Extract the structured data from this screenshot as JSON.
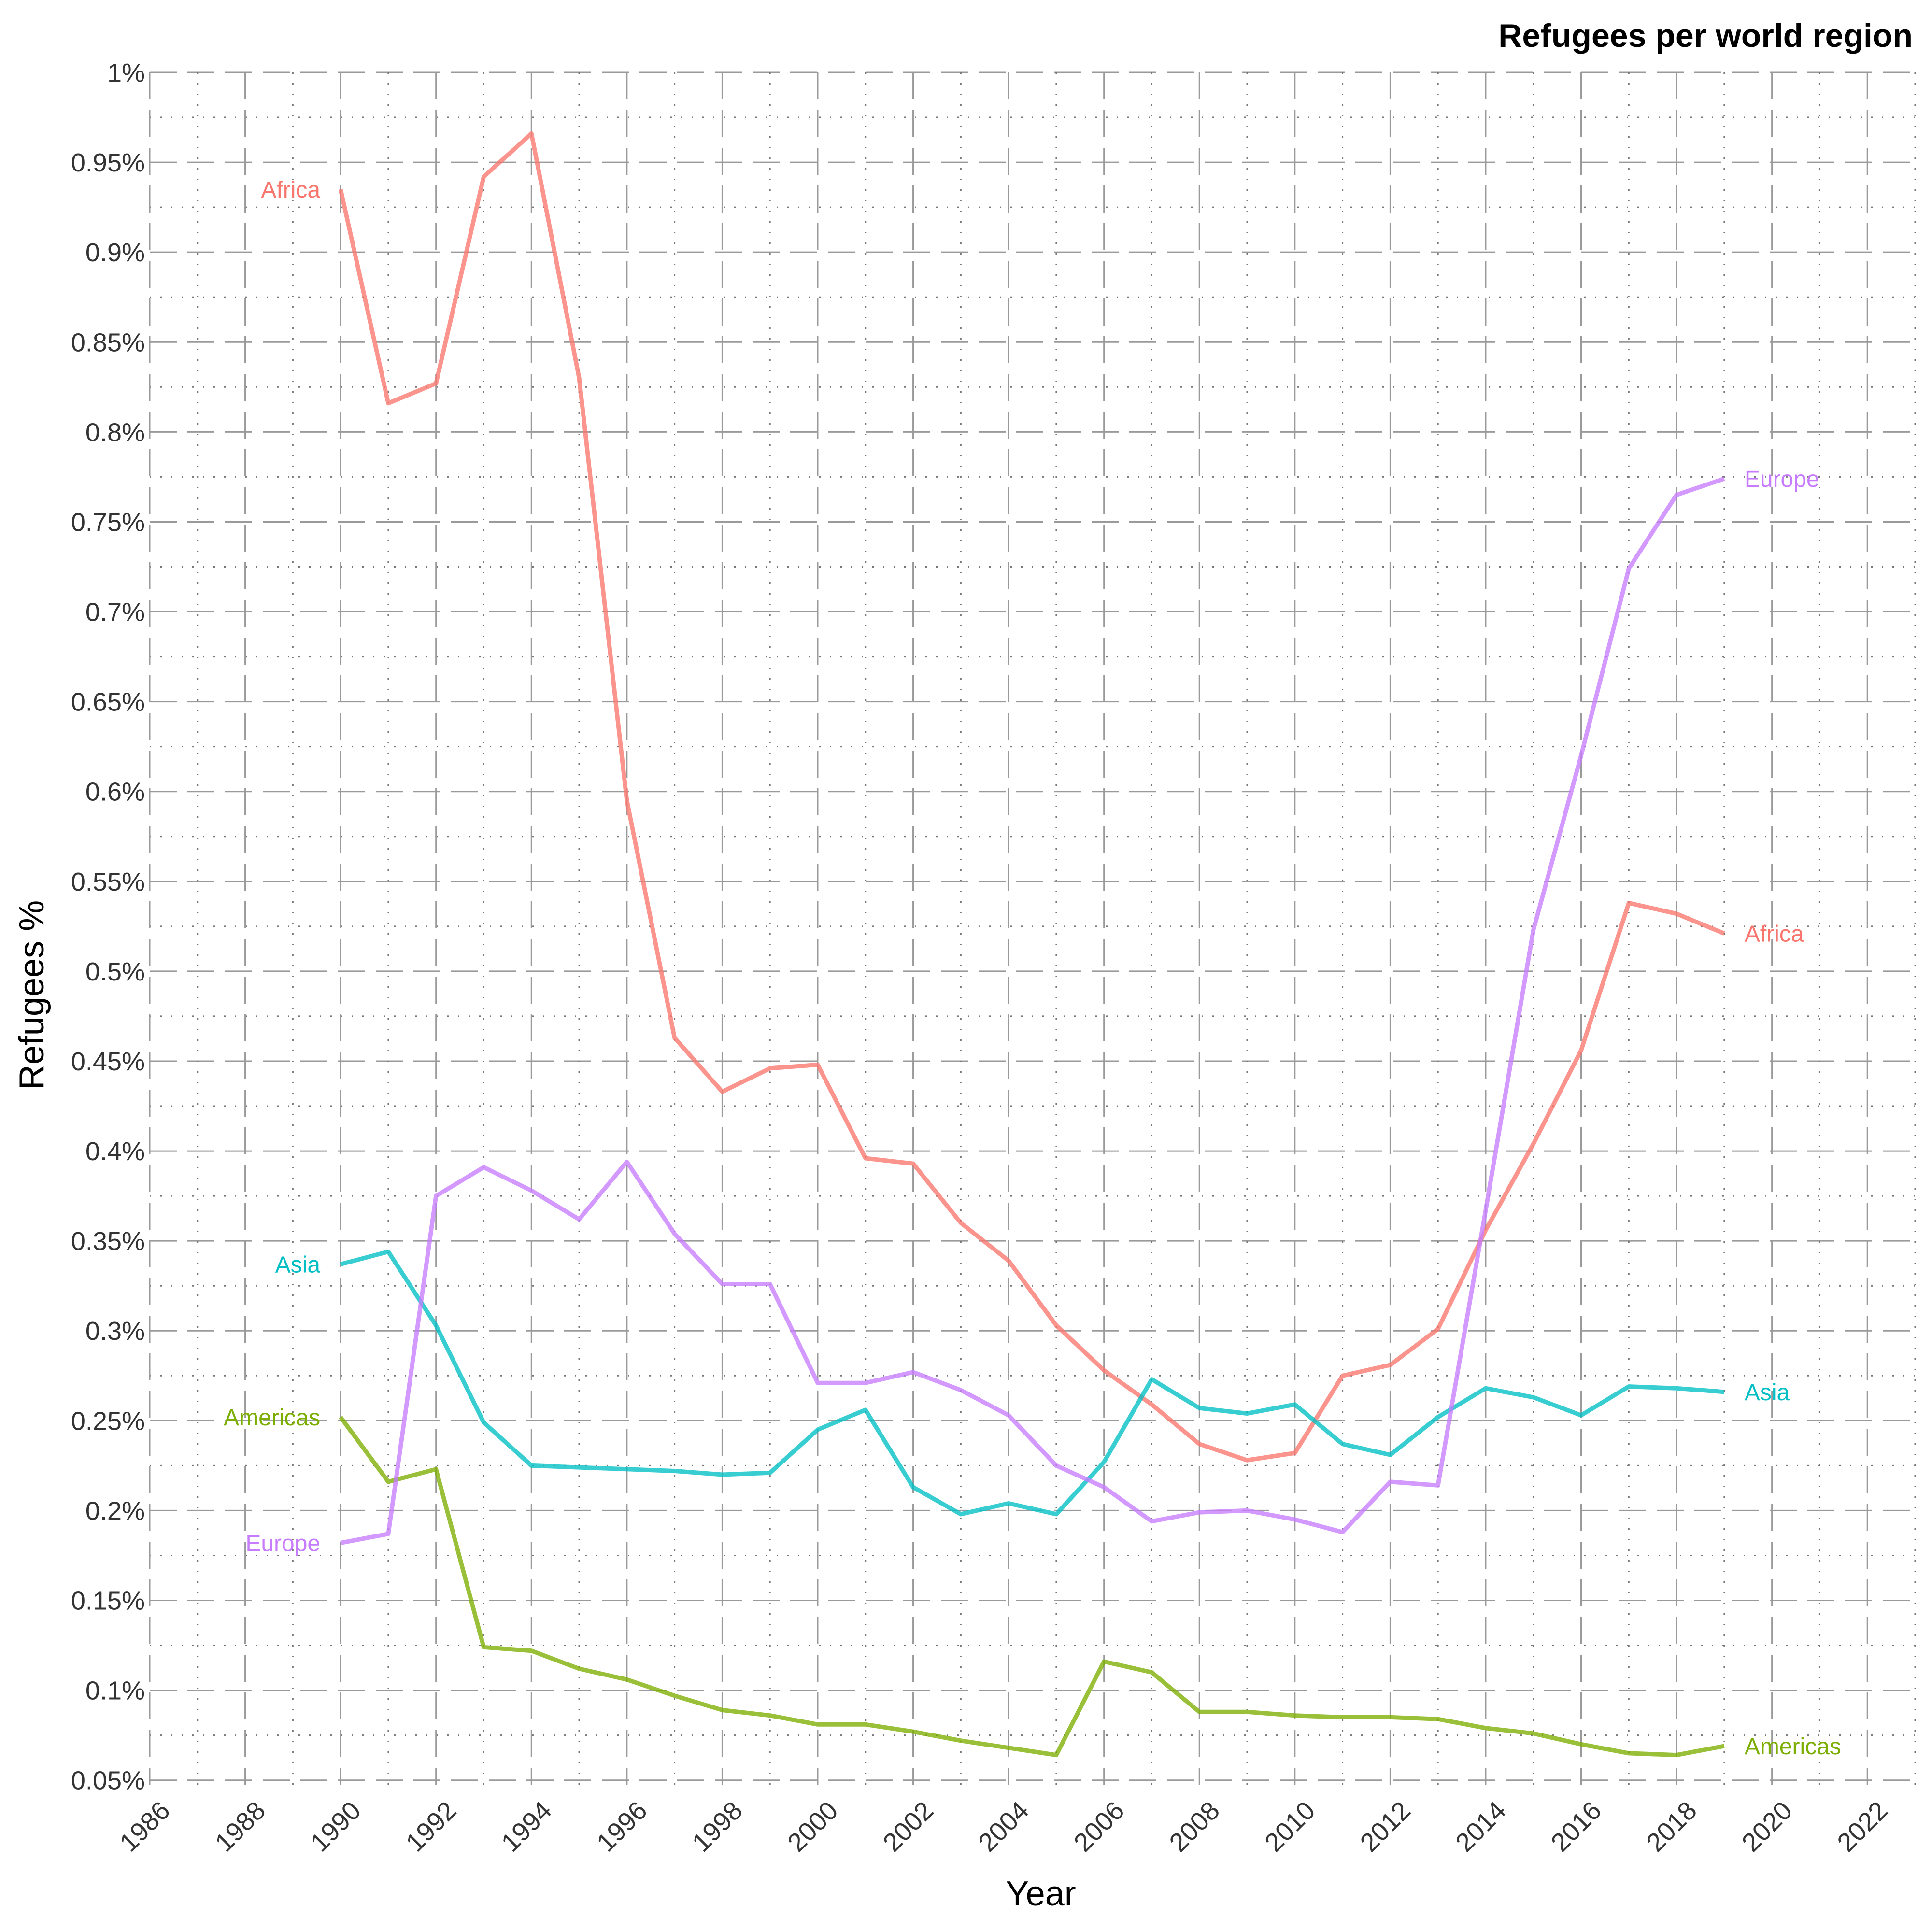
{
  "chart_data": {
    "type": "line",
    "title": "Refugees per world region",
    "xlabel": "Year",
    "ylabel": "Refugees %",
    "xlim": [
      1986,
      2023
    ],
    "ylim": [
      0.0475,
      1.0
    ],
    "grid": true,
    "x_ticks": [
      "1986",
      "1988",
      "1990",
      "1992",
      "1994",
      "1996",
      "1998",
      "2000",
      "2002",
      "2004",
      "2006",
      "2008",
      "2010",
      "2012",
      "2014",
      "2016",
      "2018",
      "2020",
      "2022"
    ],
    "y_ticks": [
      "0.05%",
      "0.1%",
      "0.15%",
      "0.2%",
      "0.25%",
      "0.3%",
      "0.35%",
      "0.4%",
      "0.45%",
      "0.5%",
      "0.55%",
      "0.6%",
      "0.65%",
      "0.7%",
      "0.75%",
      "0.8%",
      "0.85%",
      "0.9%",
      "0.95%",
      "1%"
    ],
    "x": [
      1990,
      1991,
      1992,
      1993,
      1994,
      1995,
      1996,
      1997,
      1998,
      1999,
      2000,
      2001,
      2002,
      2003,
      2004,
      2005,
      2006,
      2007,
      2008,
      2009,
      2010,
      2011,
      2012,
      2013,
      2014,
      2015,
      2016,
      2017,
      2018,
      2019
    ],
    "series": [
      {
        "name": "Africa",
        "color": "#F8766D",
        "values": [
          0.935,
          0.816,
          0.827,
          0.942,
          0.966,
          0.83,
          0.595,
          0.463,
          0.433,
          0.446,
          0.448,
          0.396,
          0.393,
          0.36,
          0.339,
          0.303,
          0.278,
          0.259,
          0.237,
          0.228,
          0.232,
          0.275,
          0.281,
          0.301,
          0.356,
          0.404,
          0.456,
          0.538,
          0.532,
          0.521
        ]
      },
      {
        "name": "Americas",
        "color": "#7CAE00",
        "values": [
          0.252,
          0.216,
          0.223,
          0.124,
          0.122,
          0.112,
          0.106,
          0.097,
          0.089,
          0.086,
          0.081,
          0.081,
          0.077,
          0.072,
          0.068,
          0.064,
          0.116,
          0.11,
          0.088,
          0.088,
          0.086,
          0.085,
          0.085,
          0.084,
          0.079,
          0.076,
          0.07,
          0.065,
          0.064,
          0.069
        ]
      },
      {
        "name": "Asia",
        "color": "#00BFC4",
        "values": [
          0.337,
          0.344,
          0.303,
          0.249,
          0.225,
          0.224,
          0.223,
          0.222,
          0.22,
          0.221,
          0.245,
          0.256,
          0.213,
          0.198,
          0.204,
          0.198,
          0.227,
          0.273,
          0.257,
          0.254,
          0.259,
          0.237,
          0.231,
          0.252,
          0.268,
          0.263,
          0.253,
          0.269,
          0.268,
          0.266
        ]
      },
      {
        "name": "Europe",
        "color": "#C77CFF",
        "values": [
          0.182,
          0.187,
          0.375,
          0.391,
          0.378,
          0.362,
          0.394,
          0.354,
          0.326,
          0.326,
          0.271,
          0.271,
          0.277,
          0.267,
          0.253,
          0.225,
          0.213,
          0.194,
          0.199,
          0.2,
          0.195,
          0.188,
          0.216,
          0.214,
          0.367,
          0.523,
          0.62,
          0.724,
          0.765,
          0.774
        ]
      }
    ],
    "start_labels": [
      {
        "name": "Africa",
        "value": 0.935
      },
      {
        "name": "Asia",
        "value": 0.337
      },
      {
        "name": "Americas",
        "value": 0.252
      },
      {
        "name": "Europe",
        "value": 0.182
      }
    ],
    "end_labels": [
      {
        "name": "Europe",
        "value": 0.774
      },
      {
        "name": "Africa",
        "value": 0.521
      },
      {
        "name": "Asia",
        "value": 0.266
      },
      {
        "name": "Americas",
        "value": 0.069
      }
    ]
  }
}
